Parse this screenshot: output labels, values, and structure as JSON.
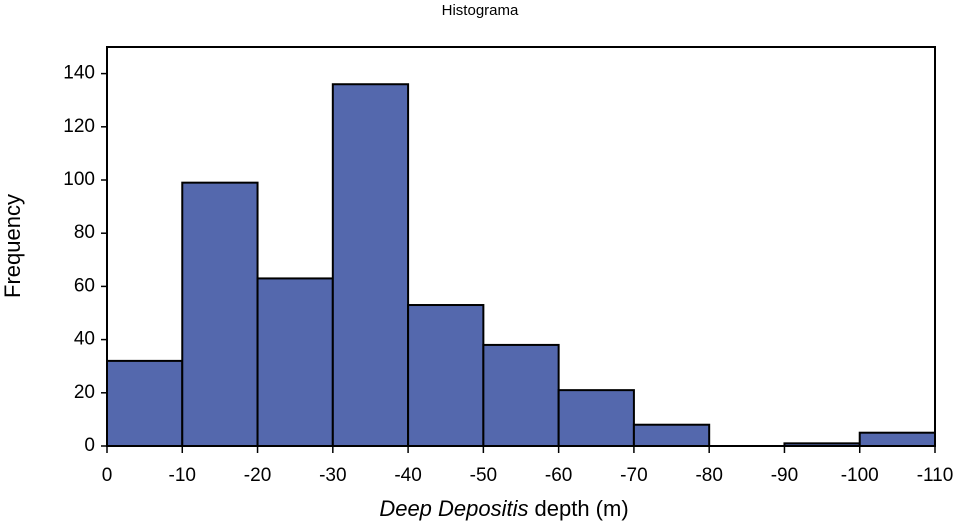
{
  "chart_data": {
    "type": "histogram",
    "title": "Histograma",
    "xlabel": [
      "Deep Depositis",
      "depth (m)"
    ],
    "ylabel": "Frequency",
    "bins": [
      0,
      -10,
      -20,
      -30,
      -40,
      -50,
      -60,
      -70,
      -80,
      -90,
      -100,
      -110
    ],
    "values": [
      32,
      99,
      63,
      136,
      53,
      38,
      21,
      8,
      0,
      1,
      5
    ],
    "color": "#5468ad",
    "xlim": [
      0,
      -110
    ],
    "xticks": [
      0,
      -10,
      -20,
      -30,
      -40,
      -50,
      -60,
      -70,
      -80,
      -90,
      -100,
      -110
    ],
    "ylim": [
      0,
      150
    ],
    "yticks": [
      0,
      20,
      40,
      60,
      80,
      100,
      120,
      140
    ],
    "grid": false
  }
}
